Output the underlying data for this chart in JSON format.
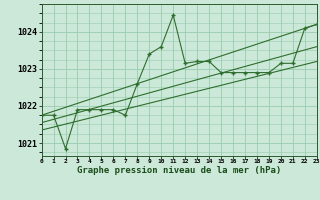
{
  "title": "Graphe pression niveau de la mer (hPa)",
  "background_color": "#cce8d8",
  "grid_color": "#99ccb0",
  "line_color": "#2d6e2d",
  "x_labels": [
    "0",
    "1",
    "2",
    "3",
    "4",
    "5",
    "6",
    "7",
    "8",
    "9",
    "10",
    "11",
    "12",
    "13",
    "14",
    "15",
    "16",
    "17",
    "18",
    "19",
    "20",
    "21",
    "22",
    "23"
  ],
  "xlim": [
    0,
    23
  ],
  "ylim": [
    1020.65,
    1024.75
  ],
  "yticks": [
    1021,
    1022,
    1023,
    1024
  ],
  "main_x": [
    0,
    1,
    2,
    3,
    4,
    5,
    6,
    7,
    8,
    9,
    10,
    11,
    12,
    13,
    14,
    15,
    16,
    17,
    18,
    19,
    20,
    21,
    22,
    23
  ],
  "main_y": [
    1021.75,
    1021.75,
    1020.85,
    1021.9,
    1021.9,
    1021.9,
    1021.9,
    1021.75,
    1022.6,
    1023.4,
    1023.6,
    1024.45,
    1023.15,
    1023.2,
    1023.2,
    1022.9,
    1022.9,
    1022.9,
    1022.9,
    1022.9,
    1023.15,
    1023.15,
    1024.1,
    1024.2
  ],
  "trend1_x": [
    0,
    23
  ],
  "trend1_y": [
    1021.75,
    1024.2
  ],
  "trend2_x": [
    0,
    23
  ],
  "trend2_y": [
    1021.55,
    1023.6
  ],
  "trend3_x": [
    0,
    23
  ],
  "trend3_y": [
    1021.35,
    1023.2
  ]
}
